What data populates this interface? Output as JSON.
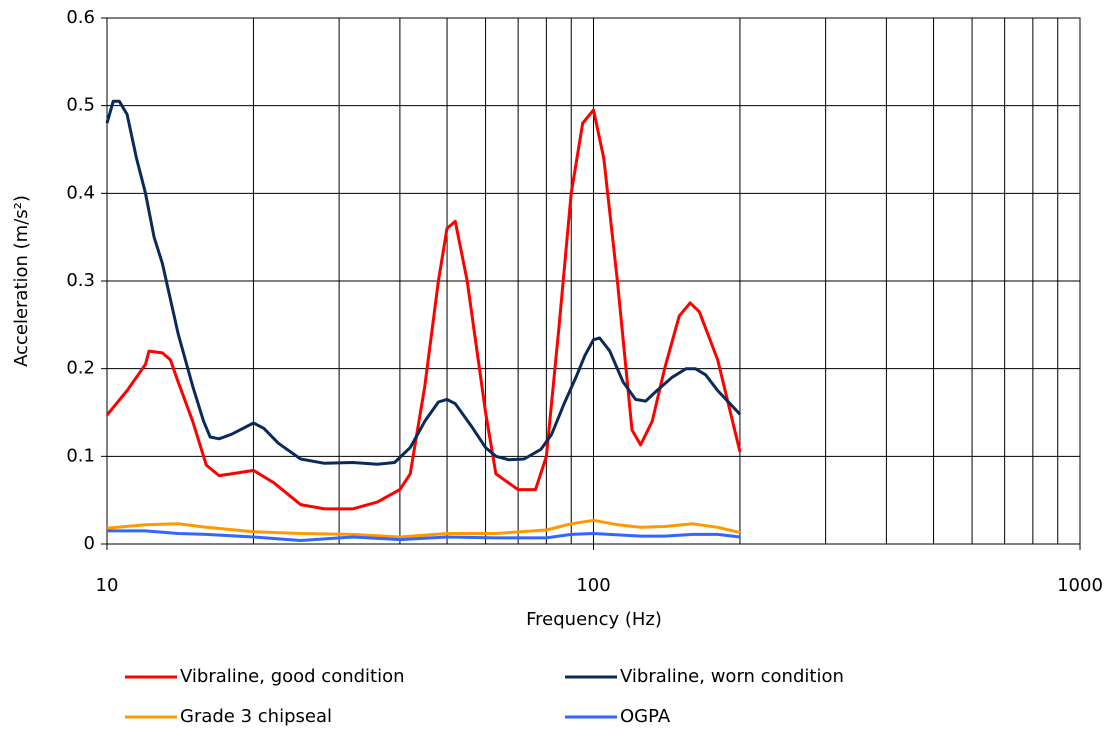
{
  "chart_data": {
    "type": "line",
    "x_label": "Frequency (Hz)",
    "y_label": "Acceleration (m/s²)",
    "xscale": "log",
    "xlim": [
      10,
      1000
    ],
    "xticks": [
      10,
      100,
      1000
    ],
    "ylim": [
      0,
      0.6
    ],
    "yticks": [
      0,
      0.1,
      0.2,
      0.3,
      0.4,
      0.5,
      0.6
    ],
    "grid": true,
    "legend": "bottom",
    "series": [
      {
        "name": "Vibraline, good condition",
        "color": "#ff0000",
        "x": [
          10,
          11,
          12,
          12.2,
          13,
          13.5,
          14,
          15,
          16,
          17,
          18,
          20,
          22,
          25,
          28,
          32,
          36,
          40,
          42,
          45,
          48,
          50,
          52,
          55,
          60,
          63,
          70,
          76,
          80,
          85,
          90,
          95,
          100,
          105,
          112,
          120,
          125,
          132,
          140,
          150,
          158,
          165,
          180,
          200
        ],
        "values": [
          0.147,
          0.175,
          0.205,
          0.22,
          0.218,
          0.21,
          0.185,
          0.14,
          0.09,
          0.078,
          0.08,
          0.084,
          0.07,
          0.045,
          0.04,
          0.04,
          0.048,
          0.062,
          0.08,
          0.18,
          0.3,
          0.36,
          0.368,
          0.3,
          0.15,
          0.08,
          0.062,
          0.062,
          0.1,
          0.25,
          0.4,
          0.48,
          0.495,
          0.44,
          0.3,
          0.13,
          0.113,
          0.14,
          0.2,
          0.26,
          0.275,
          0.265,
          0.21,
          0.105
        ]
      },
      {
        "name": "Vibraline, worn condition",
        "color": "#0a2a5a",
        "x": [
          10,
          10.3,
          10.6,
          11,
          11.5,
          12,
          12.5,
          13,
          14,
          15,
          15.8,
          16.3,
          17,
          18,
          20,
          21,
          22.5,
          25,
          28,
          32,
          36,
          39,
          42,
          45,
          48,
          50,
          52,
          56,
          60,
          63,
          67,
          72,
          78,
          82,
          87,
          92,
          96,
          100,
          103,
          108,
          115,
          122,
          128,
          135,
          145,
          155,
          162,
          170,
          180,
          200
        ],
        "values": [
          0.48,
          0.505,
          0.505,
          0.49,
          0.44,
          0.4,
          0.35,
          0.32,
          0.24,
          0.18,
          0.14,
          0.122,
          0.12,
          0.125,
          0.138,
          0.132,
          0.115,
          0.097,
          0.092,
          0.093,
          0.091,
          0.093,
          0.11,
          0.14,
          0.162,
          0.165,
          0.16,
          0.135,
          0.11,
          0.1,
          0.096,
          0.097,
          0.108,
          0.125,
          0.16,
          0.19,
          0.215,
          0.233,
          0.235,
          0.22,
          0.185,
          0.165,
          0.163,
          0.175,
          0.19,
          0.2,
          0.2,
          0.193,
          0.175,
          0.148
        ]
      },
      {
        "name": "Grade 3 chipseal",
        "color": "#ff9900",
        "x": [
          10,
          12,
          14,
          16,
          20,
          25,
          32,
          40,
          50,
          63,
          80,
          90,
          100,
          112,
          125,
          140,
          160,
          180,
          200
        ],
        "values": [
          0.018,
          0.022,
          0.023,
          0.019,
          0.014,
          0.012,
          0.011,
          0.008,
          0.012,
          0.012,
          0.016,
          0.023,
          0.027,
          0.022,
          0.019,
          0.02,
          0.023,
          0.019,
          0.013
        ]
      },
      {
        "name": "OGPA",
        "color": "#3366ff",
        "x": [
          10,
          12,
          14,
          16,
          20,
          25,
          32,
          40,
          50,
          63,
          80,
          90,
          100,
          125,
          140,
          160,
          180,
          200
        ],
        "values": [
          0.015,
          0.015,
          0.012,
          0.011,
          0.008,
          0.004,
          0.008,
          0.005,
          0.008,
          0.007,
          0.007,
          0.011,
          0.012,
          0.009,
          0.009,
          0.011,
          0.011,
          0.008
        ]
      }
    ]
  }
}
